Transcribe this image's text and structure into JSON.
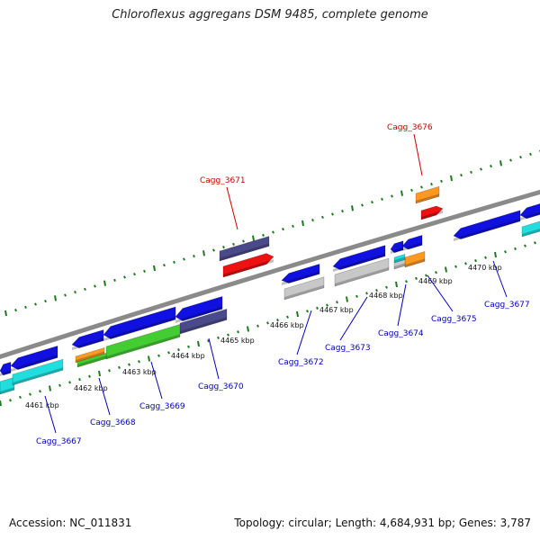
{
  "title": "Chloroflexus aggregans DSM 9485, complete genome",
  "footer": {
    "accession": "Accession: NC_011831",
    "topology": "Topology: circular; Length: 4,684,931 bp; Genes: 3,787"
  },
  "kbp_labels": [
    "4461 kbp",
    "4462 kbp",
    "4463 kbp",
    "4464 kbp",
    "4465 kbp",
    "4466 kbp",
    "4467 kbp",
    "4468 kbp",
    "4469 kbp",
    "4470 kbp"
  ],
  "gene_labels": {
    "top": [
      "Cagg_3671",
      "Cagg_3676"
    ],
    "bottom": [
      "Cagg_3667",
      "Cagg_3668",
      "Cagg_3669",
      "Cagg_3670",
      "Cagg_3672",
      "Cagg_3673",
      "Cagg_3674",
      "Cagg_3675",
      "Cagg_3677"
    ]
  },
  "colors": {
    "backbone": "#8a8a8a",
    "ticks": "#1e7a1e",
    "cds": "#1010e0",
    "hypothetical": "#4a4a8a",
    "highlight": "#ee1111",
    "rna": "#22dddd",
    "gray_feature": "#c8c8c8",
    "green_feature": "#44cc33",
    "orange_feature": "#ff9922",
    "highlight_label": "#cc0000",
    "normal_label": "#0000bb"
  }
}
